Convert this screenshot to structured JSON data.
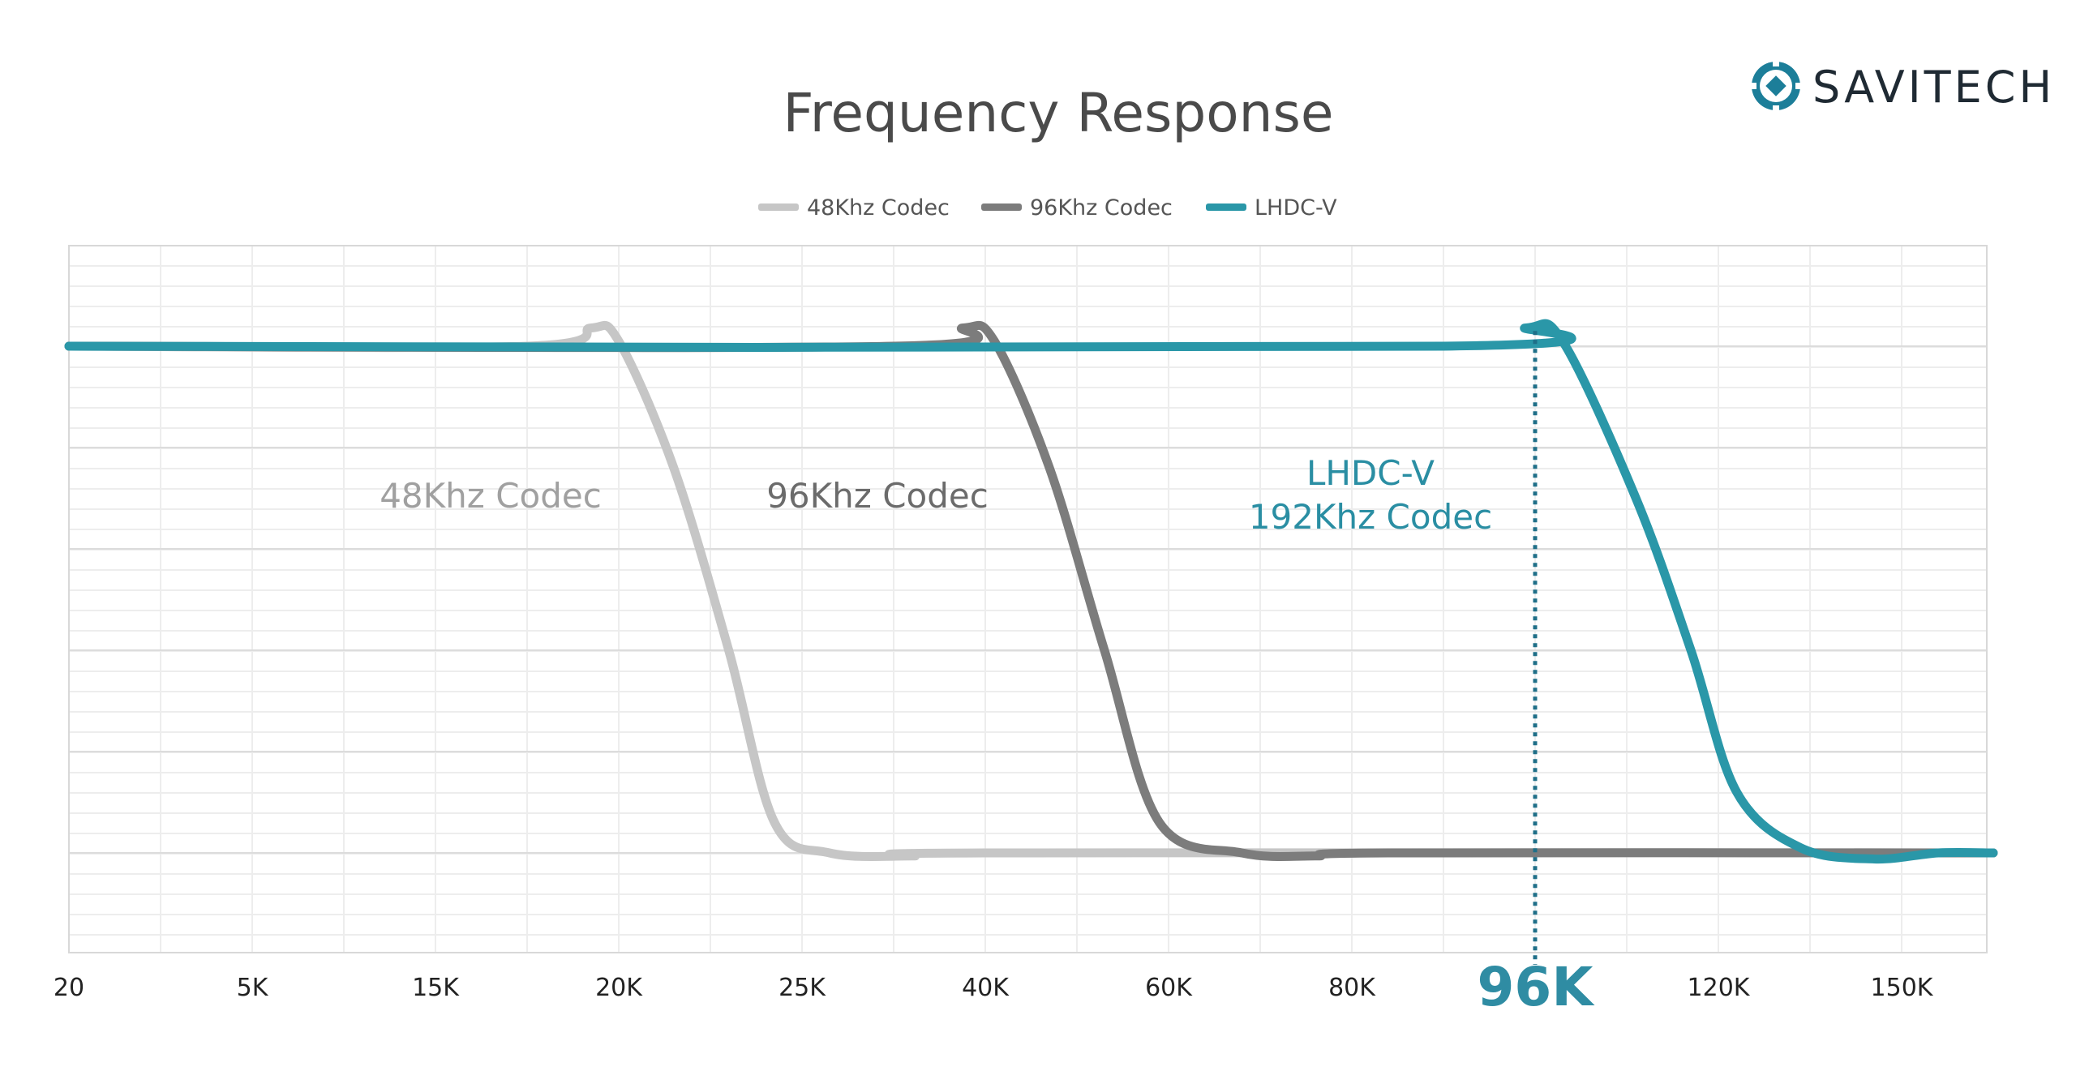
{
  "brand": {
    "name": "SAVITECH",
    "logo_icon": "savitech-logo-icon",
    "color": "#1c7e99"
  },
  "chart_data": {
    "type": "line",
    "title": "Frequency Response",
    "xlabel": "",
    "ylabel": "",
    "x_ticks": [
      "20",
      "5K",
      "15K",
      "20K",
      "25K",
      "40K",
      "60K",
      "80K",
      "96K",
      "120K",
      "150K"
    ],
    "x_tick_positions": [
      0,
      1,
      2,
      3,
      4,
      5,
      6,
      7,
      8,
      9,
      10
    ],
    "x_range": [
      0,
      10.5
    ],
    "y_range": [
      -8,
      1.5
    ],
    "y_unit": "relative level",
    "grid": true,
    "legend_placement": "top-center",
    "series": [
      {
        "name": "48Khz Codec",
        "color": "#c6c6c6",
        "points": [
          [
            0,
            0
          ],
          [
            2.5,
            0
          ],
          [
            2.85,
            0.18
          ],
          [
            3.0,
            0.05
          ],
          [
            3.3,
            -1.2
          ],
          [
            3.6,
            -3.0
          ],
          [
            3.85,
            -4.7
          ],
          [
            4.15,
            -5.0
          ],
          [
            4.6,
            -5.03
          ],
          [
            5.0,
            -5.0
          ],
          [
            10.5,
            -5.0
          ]
        ]
      },
      {
        "name": "96Khz Codec",
        "color": "#7c7c7c",
        "points": [
          [
            0,
            0
          ],
          [
            4.5,
            0
          ],
          [
            4.88,
            0.18
          ],
          [
            5.05,
            0.05
          ],
          [
            5.35,
            -1.2
          ],
          [
            5.65,
            -3.0
          ],
          [
            5.95,
            -4.7
          ],
          [
            6.4,
            -5.0
          ],
          [
            6.8,
            -5.03
          ],
          [
            7.2,
            -5.0
          ],
          [
            10.5,
            -5.0
          ]
        ]
      },
      {
        "name": "LHDC-V",
        "color": "#2a97a8",
        "points": [
          [
            0,
            0
          ],
          [
            7.5,
            0
          ],
          [
            7.95,
            0.18
          ],
          [
            8.15,
            0.05
          ],
          [
            8.55,
            -1.5
          ],
          [
            8.85,
            -3.0
          ],
          [
            9.1,
            -4.4
          ],
          [
            9.45,
            -4.95
          ],
          [
            9.85,
            -5.06
          ],
          [
            10.2,
            -5.0
          ],
          [
            10.5,
            -5.0
          ]
        ]
      }
    ],
    "marker": {
      "x": 8,
      "label": "96K",
      "style": "dotted"
    },
    "annotations": {
      "a48": "48Khz Codec",
      "a96": "96Khz Codec",
      "lhdc_line1": "LHDC-V",
      "lhdc_line2": "192Khz Codec"
    },
    "colors": {
      "grid_major": "#dcdcdc",
      "grid_minor": "#ededed",
      "annotation_48": "#a0a0a0",
      "annotation_96": "#6b6b6b",
      "annotation_lhdc": "#2a8ea3",
      "marker": "#1f6f88"
    }
  }
}
